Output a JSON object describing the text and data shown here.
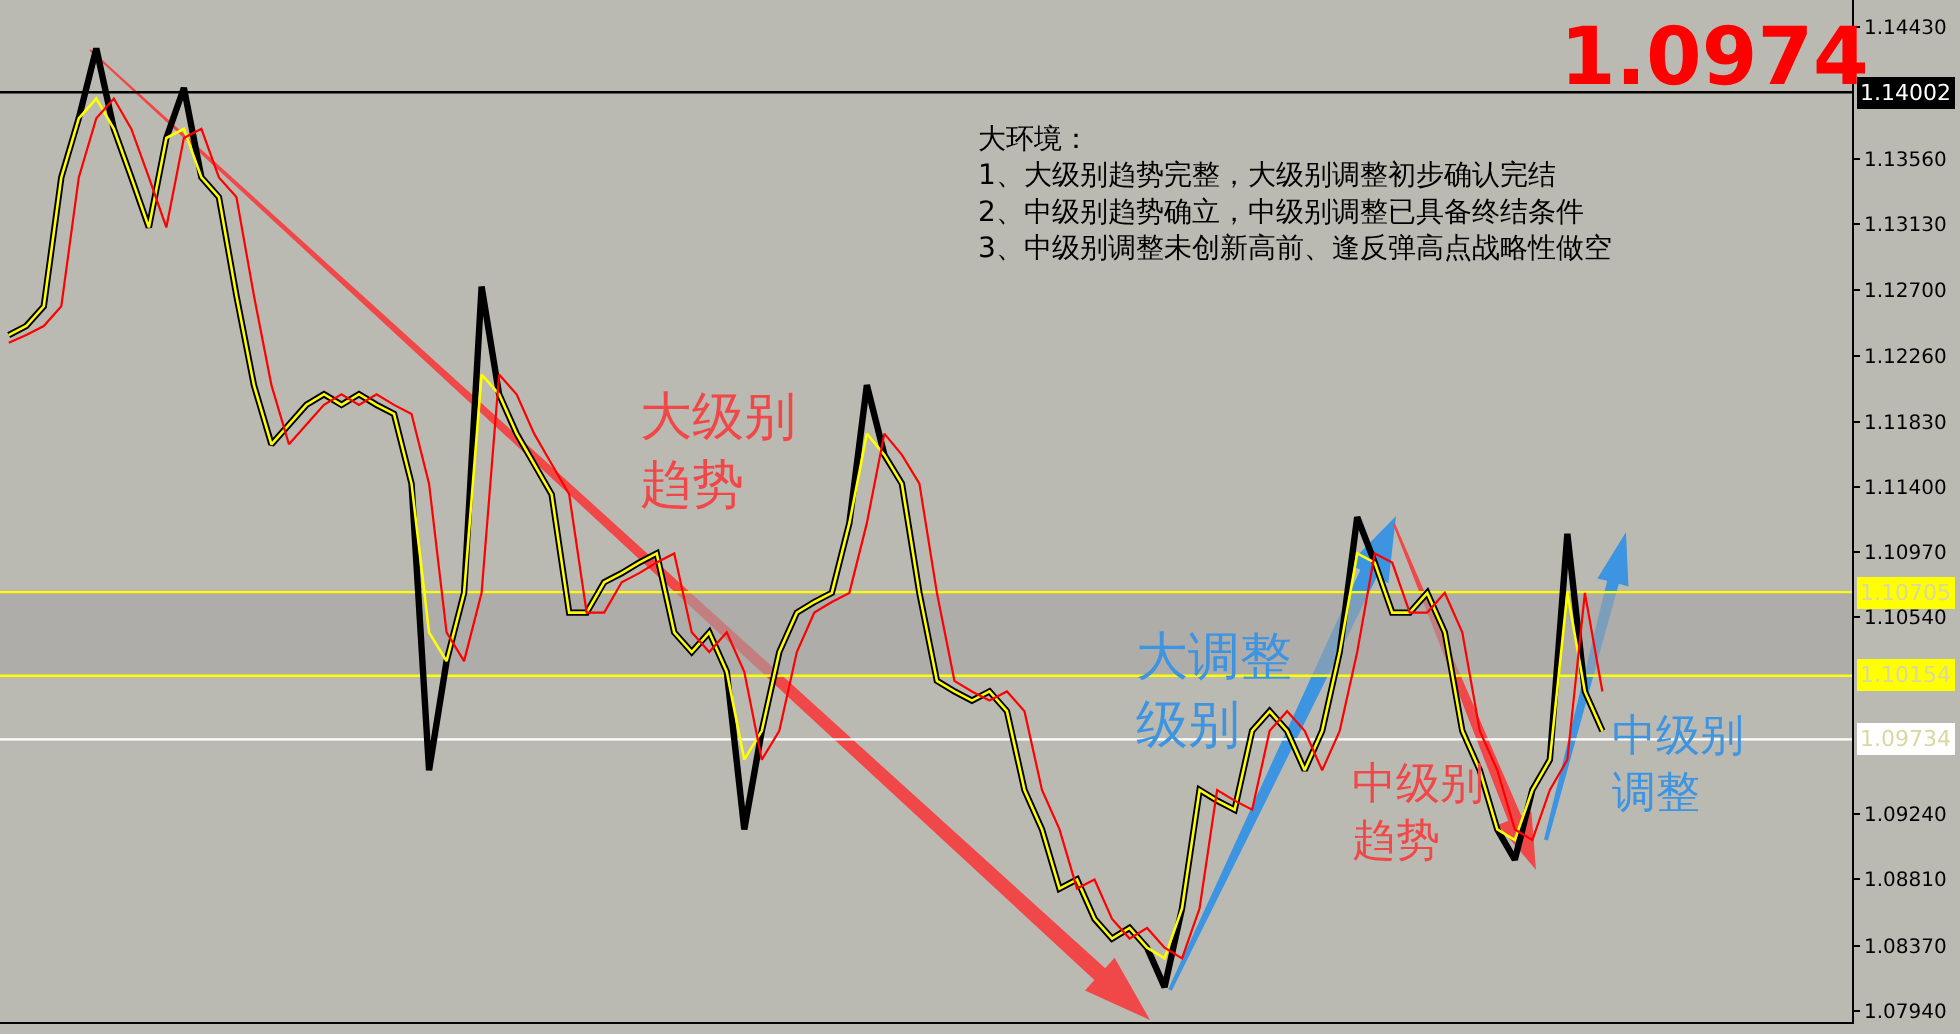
{
  "chart_data": {
    "type": "line",
    "categories": [
      null,
      null,
      null,
      null,
      null,
      null,
      null,
      null,
      null,
      null,
      null,
      null,
      null,
      null,
      null,
      null,
      null,
      null,
      null,
      null,
      null,
      null,
      null,
      null,
      null,
      null,
      null,
      null,
      null,
      null,
      null,
      null,
      null,
      null,
      null,
      null,
      null,
      null,
      null,
      null,
      null,
      null,
      null,
      null,
      null,
      null,
      null,
      null,
      null,
      null,
      null,
      null,
      null,
      null,
      null,
      null,
      null,
      null,
      null,
      null,
      null,
      null,
      null,
      null,
      null,
      null,
      null,
      null,
      null,
      null,
      null,
      null,
      null,
      null,
      null,
      null,
      null,
      null,
      null,
      null,
      null,
      null,
      null,
      null,
      null,
      null,
      null,
      null,
      null,
      null,
      null,
      null
    ],
    "series": [
      {
        "color": "#000000",
        "values": [
          1.124,
          1.1246,
          1.1259,
          1.1344,
          1.1383,
          1.1429,
          1.1376,
          1.1344,
          1.1311,
          1.137,
          1.1403,
          1.1344,
          1.1331,
          1.1266,
          1.1207,
          1.1168,
          1.1181,
          1.1194,
          1.1201,
          1.1194,
          1.1201,
          1.1194,
          1.1188,
          1.1142,
          1.0953,
          1.1025,
          1.107,
          1.1272,
          1.1201,
          1.1175,
          1.1155,
          1.1135,
          1.1057,
          1.1057,
          1.1077,
          1.1083,
          1.109,
          1.1096,
          1.1044,
          1.1031,
          1.1044,
          1.1018,
          1.0914,
          1.0979,
          1.1031,
          1.1057,
          1.1064,
          1.107,
          1.1116,
          1.1207,
          1.1161,
          1.1142,
          1.107,
          1.1012,
          1.1005,
          1.0999,
          1.1005,
          1.0992,
          1.094,
          1.0914,
          1.0875,
          1.0881,
          1.0855,
          1.0842,
          1.0849,
          1.0836,
          1.081,
          1.0862,
          1.094,
          1.0933,
          1.0927,
          1.0979,
          1.0992,
          1.0979,
          1.0953,
          1.0979,
          1.1031,
          1.112,
          1.109,
          1.1057,
          1.1057,
          1.107,
          1.1044,
          1.0979,
          1.0953,
          1.0914,
          1.0894,
          1.094,
          1.096,
          1.1109,
          1.1005,
          1.0979
        ]
      },
      {
        "color": "#ffff00",
        "values": [
          1.124,
          1.1246,
          1.1259,
          1.1344,
          1.1383,
          1.1396,
          1.1376,
          1.1344,
          1.1311,
          1.137,
          1.1376,
          1.1344,
          1.1331,
          1.1266,
          1.1207,
          1.1168,
          1.1181,
          1.1194,
          1.1201,
          1.1194,
          1.1201,
          1.1194,
          1.1188,
          1.1142,
          1.1044,
          1.1025,
          1.107,
          1.1214,
          1.1201,
          1.1175,
          1.1155,
          1.1135,
          1.1057,
          1.1057,
          1.1077,
          1.1083,
          1.109,
          1.1096,
          1.1044,
          1.1031,
          1.1044,
          1.1018,
          1.096,
          1.0979,
          1.1031,
          1.1057,
          1.1064,
          1.107,
          1.1116,
          1.1175,
          1.1161,
          1.1142,
          1.107,
          1.1012,
          1.1005,
          1.0999,
          1.1005,
          1.0992,
          1.094,
          1.0914,
          1.0875,
          1.0881,
          1.0855,
          1.0842,
          1.0849,
          1.0836,
          1.0829,
          1.0862,
          1.094,
          1.0933,
          1.0927,
          1.0979,
          1.0992,
          1.0979,
          1.0953,
          1.0979,
          1.1031,
          1.1096,
          1.109,
          1.1057,
          1.1057,
          1.107,
          1.1044,
          1.0979,
          1.0953,
          1.0914,
          1.0907,
          1.094,
          1.096,
          1.107,
          1.1005,
          1.0979
        ]
      },
      {
        "color": "#ff0000",
        "values": [
          1.1235,
          1.124,
          1.1246,
          1.1259,
          1.1344,
          1.1383,
          1.1396,
          1.1376,
          1.1344,
          1.1311,
          1.137,
          1.1376,
          1.1344,
          1.1331,
          1.1266,
          1.1207,
          1.1168,
          1.1181,
          1.1194,
          1.1201,
          1.1194,
          1.1201,
          1.1194,
          1.1188,
          1.1142,
          1.1044,
          1.1025,
          1.107,
          1.1214,
          1.1201,
          1.1175,
          1.1155,
          1.1135,
          1.1057,
          1.1057,
          1.1077,
          1.1083,
          1.109,
          1.1096,
          1.1044,
          1.1031,
          1.1044,
          1.1018,
          1.096,
          1.0979,
          1.1031,
          1.1057,
          1.1064,
          1.107,
          1.1116,
          1.1175,
          1.1161,
          1.1142,
          1.107,
          1.1012,
          1.1005,
          1.0999,
          1.1005,
          1.0992,
          1.094,
          1.0914,
          1.0875,
          1.0881,
          1.0855,
          1.0842,
          1.0849,
          1.0836,
          1.0829,
          1.0862,
          1.094,
          1.0933,
          1.0927,
          1.0979,
          1.0992,
          1.0979,
          1.0953,
          1.0979,
          1.1031,
          1.1096,
          1.109,
          1.1057,
          1.1057,
          1.107,
          1.1044,
          1.0979,
          1.0953,
          1.0914,
          1.0907,
          1.094,
          1.096,
          1.107,
          1.1005
        ]
      }
    ],
    "ylim": [
      1.0787,
      1.1461
    ],
    "yticks": [
      {
        "value": 1.1443,
        "label": "1.14430"
      },
      {
        "value": 1.1356,
        "label": "1.13560"
      },
      {
        "value": 1.1313,
        "label": "1.13130"
      },
      {
        "value": 1.127,
        "label": "1.12700"
      },
      {
        "value": 1.1226,
        "label": "1.12260"
      },
      {
        "value": 1.1183,
        "label": "1.11830"
      },
      {
        "value": 1.114,
        "label": "1.11400"
      },
      {
        "value": 1.1097,
        "label": "1.10970"
      },
      {
        "value": 1.1054,
        "label": "1.10540"
      },
      {
        "value": 1.0924,
        "label": "1.09240"
      },
      {
        "value": 1.0881,
        "label": "1.08810"
      },
      {
        "value": 1.0837,
        "label": "1.08370"
      },
      {
        "value": 1.0794,
        "label": "1.07940"
      }
    ],
    "tick_labels": "y",
    "ref_lines": [
      {
        "axis": "y",
        "value": 1.14002,
        "label": "1.14002",
        "color": "#000000"
      },
      {
        "axis": "y",
        "value": 1.10705,
        "label": "1.10705",
        "color": "#ffff00"
      },
      {
        "axis": "y",
        "value": 1.10154,
        "label": "1.10154",
        "color": "#ffff00"
      },
      {
        "axis": "y",
        "value": 1.09734,
        "label": "1.09734",
        "color": "#ffffff"
      }
    ],
    "bands": [
      {
        "axis": "y",
        "from": 1.10154,
        "to": 1.10705,
        "color": "#a5a5a5"
      }
    ],
    "annotations": [
      "大环境：\n1、大级别趋势完整，大级别调整初步确认完结\n2、中级别趋势确立，中级别调整已具备终结条件\n3、中级别调整未创新高前、逢反弹高点战略性做空",
      "1.0974",
      "大级别趋势",
      "大调整级别",
      "中级别趋势",
      "中级别调整"
    ],
    "grid": false,
    "marker": "none",
    "line_style": "solid"
  }
}
